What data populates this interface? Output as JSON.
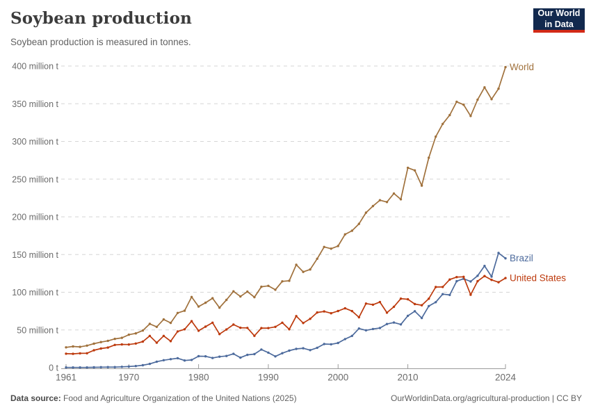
{
  "header": {
    "title": "Soybean production",
    "subtitle": "Soybean production is measured in tonnes.",
    "logo": {
      "line1": "Our World",
      "line2": "in Data",
      "bg_color": "#12294e",
      "accent_color": "#d32a17"
    }
  },
  "footer": {
    "source_label": "Data source:",
    "source_text": " Food and Agriculture Organization of the United Nations (2025)",
    "credit": "OurWorldinData.org/agricultural-production | CC BY"
  },
  "chart_data": {
    "type": "line",
    "title": "Soybean production",
    "unit": "tonnes",
    "ylim": [
      0,
      400
    ],
    "grid": "dashed-horizontal",
    "legend_position": "end-of-line",
    "x_ticks": [
      1961,
      1970,
      1980,
      1990,
      2000,
      2010,
      2024
    ],
    "y_ticks": [
      {
        "v": 0,
        "label": "0 t"
      },
      {
        "v": 50,
        "label": "50 million t"
      },
      {
        "v": 100,
        "label": "100 million t"
      },
      {
        "v": 150,
        "label": "150 million t"
      },
      {
        "v": 200,
        "label": "200 million t"
      },
      {
        "v": 250,
        "label": "250 million t"
      },
      {
        "v": 300,
        "label": "300 million t"
      },
      {
        "v": 350,
        "label": "350 million t"
      },
      {
        "v": 400,
        "label": "400 million t"
      }
    ],
    "x": [
      1961,
      1962,
      1963,
      1964,
      1965,
      1966,
      1967,
      1968,
      1969,
      1970,
      1971,
      1972,
      1973,
      1974,
      1975,
      1976,
      1977,
      1978,
      1979,
      1980,
      1981,
      1982,
      1983,
      1984,
      1985,
      1986,
      1987,
      1988,
      1989,
      1990,
      1991,
      1992,
      1993,
      1994,
      1995,
      1996,
      1997,
      1998,
      1999,
      2000,
      2001,
      2002,
      2003,
      2004,
      2005,
      2006,
      2007,
      2008,
      2009,
      2010,
      2011,
      2012,
      2013,
      2014,
      2015,
      2016,
      2017,
      2018,
      2019,
      2020,
      2021,
      2022,
      2023,
      2024
    ],
    "series": [
      {
        "name": "World",
        "color": "#a0713c",
        "values": [
          26.9,
          28.1,
          27.6,
          29.2,
          31.8,
          33.9,
          35.6,
          38.2,
          39.5,
          43.7,
          45.4,
          49.2,
          58.1,
          54.1,
          64.0,
          59.4,
          72.5,
          75.5,
          93.7,
          81.0,
          86.1,
          92.1,
          79.5,
          89.9,
          101.2,
          94.4,
          100.8,
          93.5,
          107.3,
          108.5,
          103.3,
          114.5,
          115.2,
          136.5,
          127.0,
          130.2,
          144.4,
          160.1,
          157.8,
          161.3,
          176.8,
          181.6,
          190.7,
          205.5,
          214.3,
          222.0,
          219.6,
          231.0,
          223.2,
          265.1,
          261.6,
          241.4,
          278.3,
          306.4,
          323.2,
          334.9,
          352.6,
          348.7,
          333.7,
          355.4,
          371.7,
          356.0,
          370.0,
          398.5
        ]
      },
      {
        "name": "Brazil",
        "color": "#4c6a9c",
        "values": [
          0.3,
          0.3,
          0.3,
          0.3,
          0.5,
          0.6,
          0.7,
          0.7,
          1.1,
          1.5,
          2.1,
          3.2,
          5.0,
          7.9,
          9.9,
          11.2,
          12.5,
          9.5,
          10.2,
          15.2,
          15.0,
          12.8,
          14.6,
          15.5,
          18.3,
          13.3,
          17.0,
          18.0,
          24.1,
          19.9,
          14.9,
          19.2,
          22.6,
          24.9,
          25.7,
          23.2,
          26.4,
          31.3,
          31.0,
          32.7,
          37.9,
          42.1,
          51.9,
          49.5,
          51.2,
          52.5,
          57.9,
          59.8,
          57.3,
          68.8,
          74.8,
          65.8,
          81.7,
          86.8,
          97.5,
          96.4,
          114.7,
          117.9,
          114.3,
          121.8,
          134.9,
          120.7,
          152.1,
          145.0
        ]
      },
      {
        "name": "United States",
        "color": "#bd3a0d",
        "values": [
          18.5,
          18.3,
          19.0,
          19.1,
          23.0,
          25.3,
          26.6,
          30.1,
          30.8,
          30.7,
          32.0,
          34.6,
          42.1,
          33.1,
          42.1,
          35.1,
          48.0,
          50.9,
          61.7,
          48.9,
          54.4,
          59.6,
          44.5,
          50.6,
          57.1,
          52.9,
          52.7,
          42.2,
          52.4,
          52.4,
          54.1,
          59.6,
          50.9,
          68.4,
          59.2,
          64.8,
          73.2,
          74.6,
          72.2,
          75.1,
          78.7,
          75.0,
          66.8,
          85.0,
          83.5,
          87.0,
          72.9,
          80.7,
          91.5,
          90.7,
          84.3,
          82.8,
          91.4,
          106.9,
          107.0,
          116.9,
          120.1,
          120.5,
          96.7,
          114.7,
          121.5,
          116.4,
          113.3,
          118.8
        ]
      }
    ]
  }
}
